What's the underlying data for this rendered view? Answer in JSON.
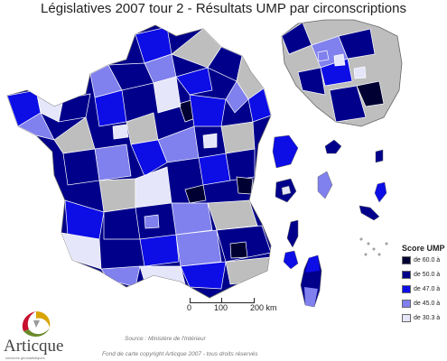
{
  "title": "Législatives 2007 tour 2 - Résultats UMP par circonscriptions",
  "colors": {
    "c60": "#000033",
    "c50": "#00008b",
    "c47": "#0d0de6",
    "c45": "#8080ee",
    "c30": "#e6e6fa",
    "none": "#bebebe",
    "border": "#ffffff"
  },
  "legend": {
    "title": "Score UMP",
    "items": [
      {
        "label": "de 60.0 à",
        "color": "#000033"
      },
      {
        "label": "de 50.0 à",
        "color": "#00008b"
      },
      {
        "label": "de 47.0 à",
        "color": "#0d0de6"
      },
      {
        "label": "de 45.0 à",
        "color": "#8080ee"
      },
      {
        "label": "de 30.3 à",
        "color": "#e6e6fa"
      }
    ]
  },
  "scale": {
    "labels": [
      "0",
      "100",
      "200 km"
    ]
  },
  "source": "Source : Ministère de l'Intérieur",
  "copyright": "Fond de carte copyright Articque 2007 - tous droits réservés",
  "logo": {
    "text": "Articque",
    "tagline": "solutions géostatistiques"
  }
}
